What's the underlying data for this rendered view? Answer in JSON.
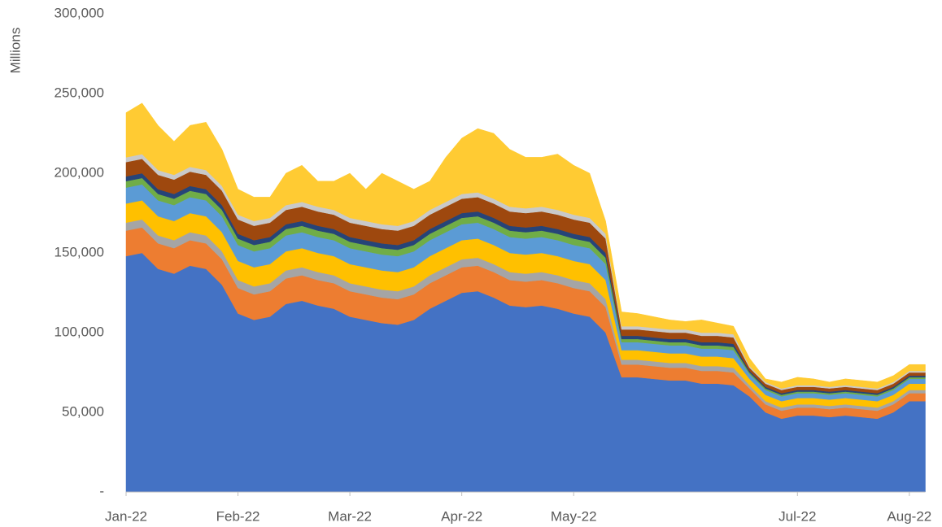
{
  "chart_data": {
    "type": "stacked_area",
    "y_label": "Millions",
    "categories": [
      "Jan-22",
      null,
      null,
      null,
      null,
      null,
      null,
      "Feb-22",
      null,
      null,
      null,
      null,
      null,
      null,
      "Mar-22",
      null,
      null,
      null,
      null,
      null,
      null,
      "Apr-22",
      null,
      null,
      null,
      null,
      null,
      null,
      "May-22",
      null,
      null,
      null,
      null,
      null,
      null,
      null,
      null,
      null,
      null,
      null,
      null,
      null,
      "Jul-22",
      null,
      null,
      null,
      null,
      null,
      null,
      "Aug-22",
      null
    ],
    "ylim": [
      0,
      300000
    ],
    "yticks": [
      {
        "value": 0,
        "label": "-"
      },
      {
        "value": 50000,
        "label": "50,000"
      },
      {
        "value": 100000,
        "label": "100,000"
      },
      {
        "value": 150000,
        "label": "150,000"
      },
      {
        "value": 200000,
        "label": "200,000"
      },
      {
        "value": 250000,
        "label": "250,000"
      },
      {
        "value": 300000,
        "label": "300,000"
      }
    ],
    "grid": false,
    "series": [
      {
        "color": "#4472c4",
        "values": [
          148000,
          150000,
          140000,
          137000,
          142000,
          140000,
          130000,
          112000,
          108000,
          110000,
          118000,
          120000,
          117000,
          115000,
          110000,
          108000,
          106000,
          105000,
          108000,
          115000,
          120000,
          125000,
          126000,
          122000,
          117000,
          116000,
          117000,
          115000,
          112000,
          110000,
          100000,
          72000,
          72000,
          71000,
          70000,
          70000,
          68000,
          68000,
          67000,
          60000,
          50000,
          46000,
          48000,
          48000,
          47000,
          48000,
          47000,
          46000,
          50000,
          57000,
          57000
        ]
      },
      {
        "color": "#ed7d31",
        "values": [
          16000,
          16000,
          16000,
          16000,
          16000,
          16000,
          16000,
          16000,
          16000,
          16000,
          16000,
          16000,
          16000,
          16000,
          16000,
          16000,
          16000,
          16000,
          16000,
          16000,
          16000,
          16000,
          16000,
          16000,
          16000,
          16000,
          16000,
          16000,
          16000,
          16000,
          16000,
          8000,
          8000,
          8000,
          8000,
          8000,
          8000,
          8000,
          8000,
          5000,
          5000,
          5000,
          5000,
          5000,
          5000,
          5000,
          5000,
          5000,
          5000,
          5000,
          5000
        ]
      },
      {
        "color": "#a5a5a5",
        "values": [
          5000,
          5000,
          5000,
          5000,
          5000,
          5000,
          5000,
          5000,
          5000,
          5000,
          5000,
          5000,
          5000,
          5000,
          5000,
          5000,
          5000,
          5000,
          5000,
          5000,
          5000,
          5000,
          5000,
          5000,
          5000,
          5000,
          5000,
          5000,
          5000,
          5000,
          5000,
          3000,
          3000,
          3000,
          3000,
          3000,
          3000,
          3000,
          3000,
          2000,
          2000,
          2000,
          2000,
          2000,
          2000,
          2000,
          2000,
          2000,
          2000,
          2000,
          2000
        ]
      },
      {
        "color": "#ffc000",
        "values": [
          12000,
          12000,
          12000,
          12000,
          12000,
          12000,
          12000,
          12000,
          12000,
          12000,
          12000,
          12000,
          12000,
          12000,
          12000,
          12000,
          12000,
          12000,
          12000,
          12000,
          12000,
          12000,
          12000,
          12000,
          12000,
          12000,
          12000,
          12000,
          12000,
          12000,
          12000,
          6000,
          6000,
          6000,
          6000,
          6000,
          6000,
          6000,
          6000,
          4000,
          4000,
          4000,
          4000,
          4000,
          4000,
          4000,
          4000,
          4000,
          4000,
          4000,
          4000
        ]
      },
      {
        "color": "#5b9bd5",
        "values": [
          10000,
          10000,
          10000,
          10000,
          10000,
          10000,
          10000,
          10000,
          10000,
          10000,
          10000,
          10000,
          10000,
          10000,
          10000,
          10000,
          10000,
          10000,
          10000,
          10000,
          10000,
          10000,
          10000,
          10000,
          10000,
          10000,
          10000,
          10000,
          10000,
          10000,
          10000,
          5000,
          5000,
          5000,
          5000,
          5000,
          5000,
          5000,
          5000,
          3000,
          3000,
          3000,
          3000,
          3000,
          3000,
          3000,
          3000,
          3000,
          3000,
          3000,
          3000
        ]
      },
      {
        "color": "#70ad47",
        "values": [
          4000,
          4000,
          4000,
          4000,
          4000,
          4000,
          4000,
          4000,
          4000,
          4000,
          4000,
          4000,
          4000,
          4000,
          4000,
          4000,
          4000,
          4000,
          4000,
          4000,
          4000,
          4000,
          4000,
          4000,
          4000,
          4000,
          4000,
          4000,
          4000,
          4000,
          4000,
          2000,
          2000,
          2000,
          2000,
          2000,
          2000,
          2000,
          2000,
          1000,
          1000,
          1000,
          1000,
          1000,
          1000,
          1000,
          1000,
          1000,
          1000,
          1000,
          1000
        ]
      },
      {
        "color": "#264478",
        "values": [
          3000,
          3000,
          3000,
          3000,
          3000,
          3000,
          3000,
          3000,
          3000,
          3000,
          3000,
          3000,
          3000,
          3000,
          3000,
          3000,
          3000,
          3000,
          3000,
          3000,
          3000,
          3000,
          3000,
          3000,
          3000,
          3000,
          3000,
          3000,
          3000,
          3000,
          3000,
          2000,
          2000,
          2000,
          2000,
          2000,
          2000,
          2000,
          2000,
          1000,
          1000,
          1000,
          1000,
          1000,
          1000,
          1000,
          1000,
          1000,
          1000,
          1000,
          1000
        ]
      },
      {
        "color": "#9e480e",
        "values": [
          9000,
          9000,
          9000,
          9000,
          9000,
          9000,
          9000,
          9000,
          9000,
          9000,
          9000,
          9000,
          9000,
          9000,
          9000,
          9000,
          9000,
          9000,
          9000,
          9000,
          9000,
          9000,
          9000,
          9000,
          9000,
          9000,
          9000,
          9000,
          9000,
          9000,
          9000,
          4000,
          4000,
          4000,
          4000,
          4000,
          4000,
          4000,
          4000,
          2000,
          2000,
          2000,
          2000,
          2000,
          2000,
          2000,
          2000,
          2000,
          2000,
          2000,
          2000
        ]
      },
      {
        "color": "#c9c9c9",
        "values": [
          3000,
          3000,
          3000,
          3000,
          3000,
          3000,
          3000,
          3000,
          3000,
          3000,
          3000,
          3000,
          3000,
          3000,
          3000,
          3000,
          3000,
          3000,
          3000,
          3000,
          3000,
          3000,
          3000,
          3000,
          3000,
          3000,
          3000,
          3000,
          3000,
          3000,
          3000,
          2000,
          2000,
          2000,
          2000,
          2000,
          2000,
          2000,
          2000,
          1000,
          1000,
          1000,
          1000,
          1000,
          1000,
          1000,
          1000,
          1000,
          1000,
          1000,
          1000
        ]
      },
      {
        "color": "#ffcb33",
        "values": [
          28000,
          32000,
          28000,
          21000,
          26000,
          30000,
          23000,
          16000,
          15000,
          13000,
          20000,
          23000,
          16000,
          18000,
          28000,
          20000,
          32000,
          28000,
          20000,
          18000,
          28000,
          35000,
          40000,
          41000,
          36000,
          32000,
          31000,
          35000,
          31000,
          28000,
          8000,
          9000,
          8000,
          7000,
          6000,
          5000,
          8000,
          6000,
          5000,
          5000,
          2000,
          4000,
          5000,
          4000,
          3000,
          4000,
          4000,
          4000,
          4000,
          4000,
          4000
        ]
      }
    ]
  }
}
